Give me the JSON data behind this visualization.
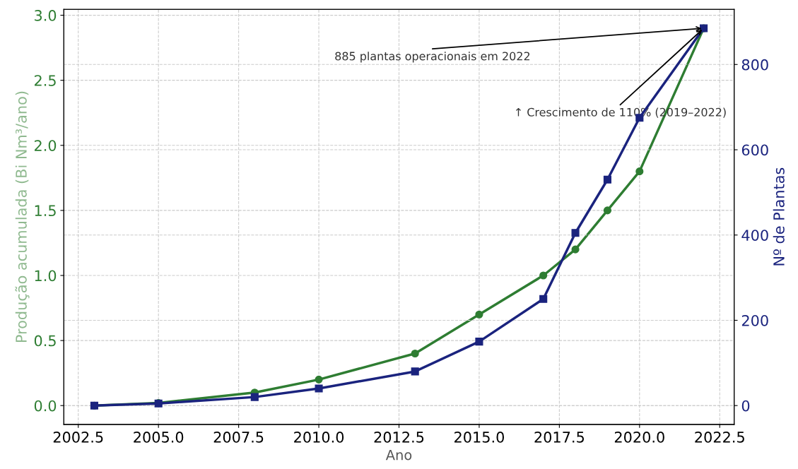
{
  "chart_data": {
    "type": "line",
    "xlabel": "Ano",
    "ylabel": "Produção acumulada (Bi Nm³/ano)",
    "y2label": "Nº de Plantas",
    "x": [
      2003,
      2005,
      2008,
      2010,
      2013,
      2015,
      2017,
      2018,
      2019,
      2020,
      2022
    ],
    "series": [
      {
        "color": "#2e7d32",
        "marker": "circle",
        "values": [
          0,
          0.02,
          0.1,
          0.2,
          0.4,
          0.7,
          1.0,
          1.2,
          1.5,
          1.8,
          2.9
        ]
      },
      {
        "color": "#1a237e",
        "marker": "square",
        "axis": "y2",
        "values": [
          0,
          5,
          20,
          40,
          80,
          150,
          250,
          405,
          530,
          675,
          885
        ]
      }
    ],
    "xlim": [
      2002.05,
      2022.95
    ],
    "xticks": [
      {
        "value": 2002.5,
        "label": "2002.5"
      },
      {
        "value": 2005,
        "label": "2005.0"
      },
      {
        "value": 2007.5,
        "label": "2007.5"
      },
      {
        "value": 2010,
        "label": "2010.0"
      },
      {
        "value": 2012.5,
        "label": "2012.5"
      },
      {
        "value": 2015,
        "label": "2015.0"
      },
      {
        "value": 2017.5,
        "label": "2017.5"
      },
      {
        "value": 2020,
        "label": "2020.0"
      },
      {
        "value": 2022.5,
        "label": "2022.5"
      }
    ],
    "ylim": [
      -0.145,
      3.045
    ],
    "yticks": [
      {
        "value": 0,
        "label": "0.0"
      },
      {
        "value": 0.5,
        "label": "0.5"
      },
      {
        "value": 1,
        "label": "1.0"
      },
      {
        "value": 1.5,
        "label": "1.5"
      },
      {
        "value": 2,
        "label": "2.0"
      },
      {
        "value": 2.5,
        "label": "2.5"
      },
      {
        "value": 3,
        "label": "3.0"
      }
    ],
    "y2lim": [
      -44.25,
      929.25
    ],
    "y2ticks": [
      0,
      200,
      400,
      600,
      800
    ],
    "grid": true,
    "legend": false,
    "line_style": "solid",
    "annotations": [
      {
        "text": "885 plantas operacionais em 2022",
        "x": 2022,
        "y": 2.9
      },
      {
        "text": "↑ Crescimento de 110% (2019–2022)",
        "x": 2022,
        "y": 2.9
      }
    ]
  }
}
